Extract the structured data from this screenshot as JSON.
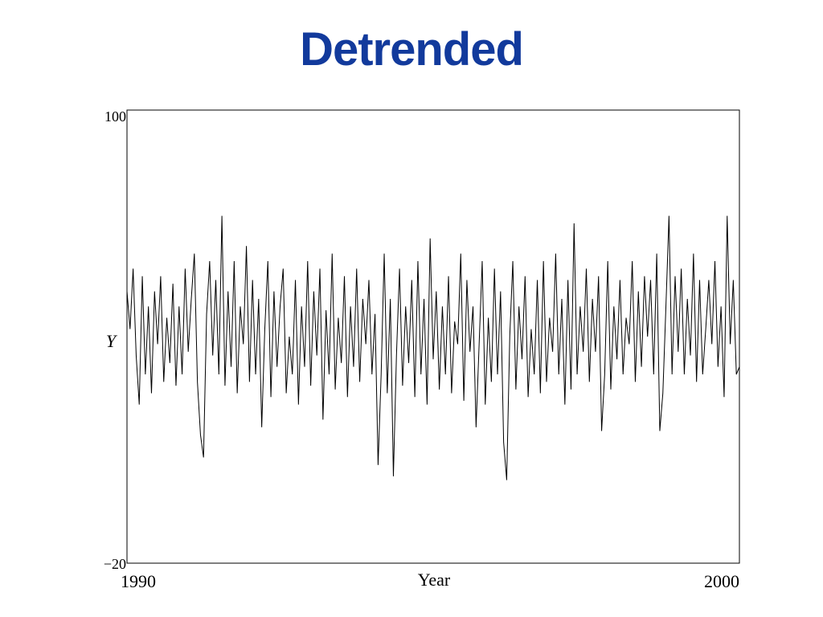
{
  "title": "Detrended",
  "colors": {
    "title": "#123a9c",
    "line": "#000000",
    "frame": "#000000"
  },
  "chart_data": {
    "type": "line",
    "title": "Detrended",
    "xlabel": "Year",
    "ylabel": "Y",
    "xlim": [
      1990,
      2000
    ],
    "ylim": [
      -20,
      100
    ],
    "x_tick_labels": [
      "1990",
      "2000"
    ],
    "y_tick_labels": [
      "100",
      "−20"
    ],
    "grid": false,
    "legend": "none",
    "series": [
      {
        "x": [
          1990.0,
          1990.05,
          1990.1,
          1990.15,
          1990.2,
          1990.25,
          1990.3,
          1990.35,
          1990.4,
          1990.45,
          1990.5,
          1990.55,
          1990.6,
          1990.65,
          1990.7,
          1990.75,
          1990.8,
          1990.85,
          1990.9,
          1990.95,
          1991.0,
          1991.05,
          1991.1,
          1991.15,
          1991.2,
          1991.25,
          1991.3,
          1991.35,
          1991.4,
          1991.45,
          1991.5,
          1991.55,
          1991.6,
          1991.65,
          1991.7,
          1991.75,
          1991.8,
          1991.85,
          1991.9,
          1991.95,
          1992.0,
          1992.05,
          1992.1,
          1992.15,
          1992.2,
          1992.25,
          1992.3,
          1992.35,
          1992.4,
          1992.45,
          1992.5,
          1992.55,
          1992.6,
          1992.65,
          1992.7,
          1992.75,
          1992.8,
          1992.85,
          1992.9,
          1992.95,
          1993.0,
          1993.05,
          1993.1,
          1993.15,
          1993.2,
          1993.25,
          1993.3,
          1993.35,
          1993.4,
          1993.45,
          1993.5,
          1993.55,
          1993.6,
          1993.65,
          1993.7,
          1993.75,
          1993.8,
          1993.85,
          1993.9,
          1993.95,
          1994.0,
          1994.05,
          1994.1,
          1994.15,
          1994.2,
          1994.25,
          1994.3,
          1994.35,
          1994.4,
          1994.45,
          1994.5,
          1994.55,
          1994.6,
          1994.65,
          1994.7,
          1994.75,
          1994.8,
          1994.85,
          1994.9,
          1994.95,
          1995.0,
          1995.05,
          1995.1,
          1995.15,
          1995.2,
          1995.25,
          1995.3,
          1995.35,
          1995.4,
          1995.45,
          1995.5,
          1995.55,
          1995.6,
          1995.65,
          1995.7,
          1995.75,
          1995.8,
          1995.85,
          1995.9,
          1995.95,
          1996.0,
          1996.05,
          1996.1,
          1996.15,
          1996.2,
          1996.25,
          1996.3,
          1996.35,
          1996.4,
          1996.45,
          1996.5,
          1996.55,
          1996.6,
          1996.65,
          1996.7,
          1996.75,
          1996.8,
          1996.85,
          1996.9,
          1996.95,
          1997.0,
          1997.05,
          1997.1,
          1997.15,
          1997.2,
          1997.25,
          1997.3,
          1997.35,
          1997.4,
          1997.45,
          1997.5,
          1997.55,
          1997.6,
          1997.65,
          1997.7,
          1997.75,
          1997.8,
          1997.85,
          1997.9,
          1997.95,
          1998.0,
          1998.05,
          1998.1,
          1998.15,
          1998.2,
          1998.25,
          1998.3,
          1998.35,
          1998.4,
          1998.45,
          1998.5,
          1998.55,
          1998.6,
          1998.65,
          1998.7,
          1998.75,
          1998.8,
          1998.85,
          1998.9,
          1998.95,
          1999.0,
          1999.05,
          1999.1,
          1999.15,
          1999.2,
          1999.25,
          1999.3,
          1999.35,
          1999.4,
          1999.45,
          1999.5,
          1999.55,
          1999.6,
          1999.65,
          1999.7,
          1999.75,
          1999.8,
          1999.85,
          1999.9,
          1999.95,
          2000.0
        ],
        "y": [
          52,
          42,
          58,
          35,
          22,
          56,
          30,
          48,
          25,
          52,
          38,
          56,
          28,
          45,
          33,
          54,
          27,
          48,
          30,
          58,
          36,
          50,
          62,
          28,
          14,
          8,
          46,
          60,
          35,
          55,
          30,
          72,
          27,
          52,
          32,
          60,
          25,
          48,
          38,
          64,
          28,
          55,
          30,
          50,
          16,
          42,
          60,
          24,
          52,
          32,
          48,
          58,
          25,
          40,
          30,
          55,
          22,
          48,
          32,
          60,
          27,
          52,
          35,
          58,
          18,
          47,
          30,
          62,
          26,
          45,
          33,
          56,
          24,
          48,
          32,
          58,
          28,
          50,
          38,
          55,
          30,
          46,
          6,
          30,
          62,
          25,
          50,
          3,
          35,
          58,
          27,
          48,
          33,
          55,
          24,
          60,
          30,
          50,
          22,
          66,
          34,
          52,
          26,
          48,
          30,
          56,
          25,
          44,
          38,
          62,
          23,
          55,
          36,
          48,
          16,
          38,
          60,
          22,
          45,
          28,
          58,
          30,
          52,
          12,
          2,
          40,
          60,
          26,
          48,
          34,
          56,
          24,
          42,
          30,
          55,
          25,
          60,
          28,
          45,
          36,
          62,
          30,
          50,
          22,
          55,
          26,
          70,
          30,
          48,
          36,
          58,
          28,
          50,
          36,
          56,
          15,
          30,
          60,
          26,
          48,
          34,
          55,
          30,
          45,
          38,
          60,
          28,
          52,
          32,
          56,
          40,
          55,
          30,
          62,
          15,
          25,
          48,
          72,
          30,
          56,
          36,
          58,
          30,
          50,
          35,
          62,
          28,
          55,
          30,
          42,
          55,
          38,
          60,
          32,
          48,
          24,
          72,
          38,
          55,
          30,
          32
        ]
      }
    ]
  }
}
